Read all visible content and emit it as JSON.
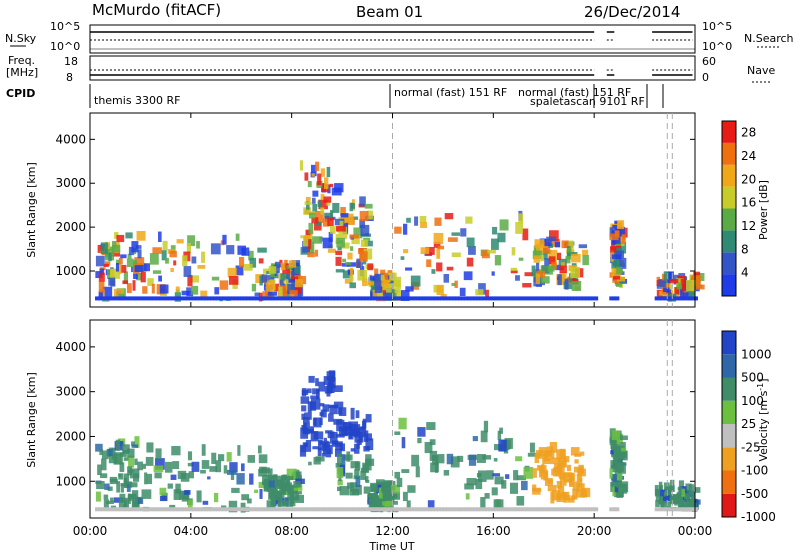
{
  "header": {
    "station": "McMurdo (fitACF)",
    "beam": "Beam 01",
    "date": "26/Dec/2014"
  },
  "summary": {
    "left_label_top": "N.Sky",
    "left_label_freq_1": "Freq.",
    "left_label_freq_2": "[MHz]",
    "left_label_cpid": "CPID",
    "right_label_search": "N.Search",
    "right_label_nave": "Nave",
    "nsky_ticks": [
      "10^5",
      "10^0"
    ],
    "freq_ticks": [
      "18",
      "8"
    ],
    "nave_ticks": [
      "60",
      "0"
    ],
    "cpid_labels": [
      "themis 3300 RF",
      "normal (fast) 151 RF",
      "normal (fast) 151 RF",
      "spaletascan 9101 RF"
    ]
  },
  "chart_data": [
    {
      "type": "heatmap",
      "title": "",
      "xlabel": "Time UT",
      "ylabel": "Slant Range [km]",
      "x_ticks": [
        "00:00",
        "04:00",
        "08:00",
        "12:00",
        "16:00",
        "20:00",
        "00:00"
      ],
      "xlim_hours": [
        0,
        24
      ],
      "ylim": [
        180,
        4600
      ],
      "y_ticks": [
        1000,
        2000,
        3000,
        4000
      ],
      "colorbar": {
        "label": "Power [dB]",
        "ticks": [
          4,
          8,
          12,
          16,
          20,
          24,
          28
        ],
        "range": [
          0,
          30
        ],
        "colors": [
          "#1e3ce8",
          "#3355c8",
          "#2e8a72",
          "#5aaa46",
          "#c8cc28",
          "#f0a818",
          "#f07010",
          "#e81c14"
        ]
      }
    },
    {
      "type": "heatmap",
      "title": "",
      "xlabel": "Time UT",
      "ylabel": "Slant Range [km]",
      "x_ticks": [
        "00:00",
        "04:00",
        "08:00",
        "12:00",
        "16:00",
        "20:00",
        "00:00"
      ],
      "xlim_hours": [
        0,
        24
      ],
      "ylim": [
        180,
        4600
      ],
      "y_ticks": [
        1000,
        2000,
        3000,
        4000
      ],
      "colorbar": {
        "label": "Velocity [m s^-1]",
        "ticks": [
          1000,
          500,
          100,
          25,
          -25,
          -100,
          -500,
          -1000
        ],
        "colors": [
          "#2244c8",
          "#2e68a8",
          "#3e8c68",
          "#6cc040",
          "#c0c0c0",
          "#f0a020",
          "#f07010",
          "#e01818"
        ]
      }
    }
  ]
}
